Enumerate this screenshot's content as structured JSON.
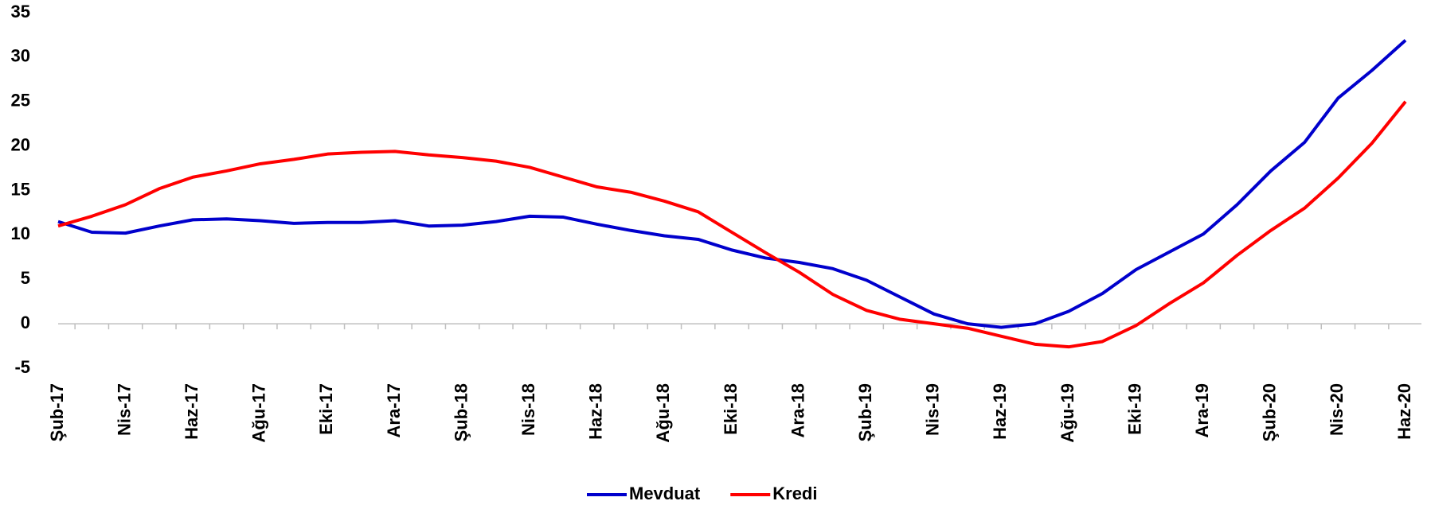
{
  "chart_data": {
    "type": "line",
    "categories": [
      "Şub-17",
      null,
      "Nis-17",
      null,
      "Haz-17",
      null,
      "Ağu-17",
      null,
      "Eki-17",
      null,
      "Ara-17",
      null,
      "Şub-18",
      null,
      "Nis-18",
      null,
      "Haz-18",
      null,
      "Ağu-18",
      null,
      "Eki-18",
      null,
      "Ara-18",
      null,
      "Şub-19",
      null,
      "Nis-19",
      null,
      "Haz-19",
      null,
      "Ağu-19",
      null,
      "Eki-19",
      null,
      "Ara-19",
      null,
      "Şub-20",
      null,
      "Nis-20",
      null,
      "Haz-20"
    ],
    "series": [
      {
        "name": "Mevduat",
        "color": "#0000cc",
        "values": [
          11.5,
          10.3,
          10.2,
          11.0,
          11.7,
          11.8,
          11.6,
          11.3,
          11.4,
          11.4,
          11.6,
          11.0,
          11.1,
          11.5,
          12.1,
          12.0,
          11.2,
          10.5,
          9.9,
          9.5,
          8.3,
          7.4,
          6.9,
          6.2,
          4.9,
          3.0,
          1.1,
          0.0,
          -0.4,
          0.0,
          1.4,
          3.4,
          6.1,
          8.1,
          10.1,
          13.4,
          17.2,
          20.4,
          25.4,
          28.5,
          31.9
        ]
      },
      {
        "name": "Kredi",
        "color": "#ff0000",
        "values": [
          11.0,
          12.1,
          13.4,
          15.2,
          16.5,
          17.2,
          18.0,
          18.5,
          19.1,
          19.3,
          19.4,
          19.0,
          18.7,
          18.3,
          17.6,
          16.5,
          15.4,
          14.8,
          13.8,
          12.6,
          10.3,
          8.0,
          5.8,
          3.3,
          1.5,
          0.5,
          0.0,
          -0.5,
          -1.4,
          -2.3,
          -2.6,
          -2.0,
          -0.2,
          2.3,
          4.6,
          7.7,
          10.5,
          13.0,
          16.4,
          20.3,
          25.0
        ]
      }
    ],
    "ylim": [
      -5,
      35
    ],
    "yticks": [
      -5,
      0,
      5,
      10,
      15,
      20,
      25,
      30,
      35
    ],
    "legend": "bottom"
  }
}
